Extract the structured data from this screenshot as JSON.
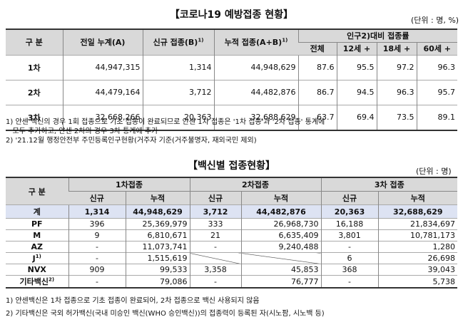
{
  "t1": {
    "title": "【코로나19 예방접종 현황】",
    "unit": "(단위 : 명, %)",
    "headers": {
      "category": "구 분",
      "prev_total": "전일 누계(A)",
      "new": "신규 접종(B)",
      "new_sup": "1)",
      "cum": "누적 접종(A+B)",
      "cum_sup": "1)",
      "rate_group": "인구2)대비 접종률",
      "rate_cols": [
        "전체",
        "12세 +",
        "18세 +",
        "60세 +"
      ]
    },
    "rows": [
      {
        "label": "1차",
        "prev": "44,947,315",
        "new": "1,314",
        "cum": "44,948,629",
        "r_all": "87.6",
        "r12": "95.5",
        "r18": "97.2",
        "r60": "96.3"
      },
      {
        "label": "2차",
        "prev": "44,479,164",
        "new": "3,712",
        "cum": "44,482,876",
        "r_all": "86.7",
        "r12": "94.5",
        "r18": "96.3",
        "r60": "95.7"
      },
      {
        "label": "3차",
        "prev": "32,668,266",
        "new": "20,363",
        "cum": "32,688,629",
        "r_all": "63.7",
        "r12": "69.4",
        "r18": "73.5",
        "r60": "89.1"
      }
    ],
    "notes": [
      "1) 얀센 백신의 경우 1회 접종으로 기초 접종이 완료되므로 얀센 1차 접종은 '1차 접종'과 '2차 접종' 통계에",
      "   모두 추가하고, 얀센 2차의 경우 3차 통계에 추가",
      "2) '21.12월 행정안전부 주민등록인구현황(거주자 기준(거주불명자, 재외국민 제외)"
    ]
  },
  "t2": {
    "title": "【백신별 접종현황】",
    "unit": "(단위 : 명)",
    "headers": {
      "category": "구 분",
      "dose1": "1차접종",
      "dose2": "2차접종",
      "dose3": "3차 접종",
      "new": "신규",
      "cum": "누적"
    },
    "rows": [
      {
        "label": "계",
        "d1n": "1,314",
        "d1c": "44,948,629",
        "d2n": "3,712",
        "d2c": "44,482,876",
        "d3n": "20,363",
        "d3c": "32,688,629"
      },
      {
        "label": "PF",
        "d1n": "396",
        "d1c": "25,369,979",
        "d2n": "333",
        "d2c": "26,968,730",
        "d3n": "16,188",
        "d3c": "21,834,697"
      },
      {
        "label": "M",
        "d1n": "9",
        "d1c": "6,810,671",
        "d2n": "21",
        "d2c": "6,635,409",
        "d3n": "3,801",
        "d3c": "10,781,173"
      },
      {
        "label": "AZ",
        "d1n": "-",
        "d1c": "11,073,741",
        "d2n": "-",
        "d2c": "9,240,488",
        "d3n": "-",
        "d3c": "1,280"
      },
      {
        "label": "J",
        "sup": "1)",
        "d1n": "-",
        "d1c": "1,515,619",
        "d2n": "",
        "d2c": "",
        "d3n": "6",
        "d3c": "26,698"
      },
      {
        "label": "NVX",
        "d1n": "909",
        "d1c": "99,533",
        "d2n": "3,358",
        "d2c": "45,853",
        "d3n": "368",
        "d3c": "39,043"
      },
      {
        "label": "기타백신",
        "sup": "2)",
        "d1n": "-",
        "d1c": "79,086",
        "d2n": "-",
        "d2c": "76,777",
        "d3n": "-",
        "d3c": "5,738"
      }
    ],
    "notes": [
      "1) 얀센백신은 1차 접종으로 기초 접종이 완료되어, 2차 접종으로 백신 사용되지 않음",
      "2) 기타백신은 국외 허가백신(국내 미승인 백신(WHO 승인백신))의 접종력이 등록된 자(시노팜, 시노백 등)"
    ]
  }
}
